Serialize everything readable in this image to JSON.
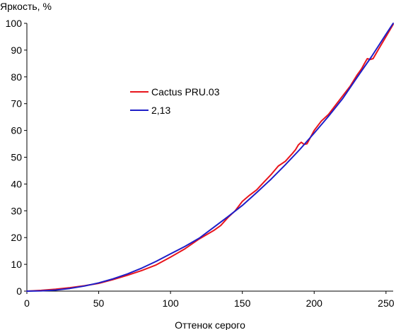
{
  "chart_data": {
    "type": "line",
    "xlabel": "Оттенок серого",
    "ylabel": "Яркость, %",
    "xlim": [
      0,
      255
    ],
    "ylim": [
      0,
      100
    ],
    "x_ticks": [
      0,
      50,
      100,
      150,
      200,
      250
    ],
    "y_ticks": [
      0,
      10,
      20,
      30,
      40,
      50,
      60,
      70,
      80,
      90,
      100
    ],
    "grid": false,
    "legend_position": "upper-left",
    "series": [
      {
        "name": "Cactus PRU.03",
        "color": "#e8141c",
        "x": [
          0,
          10,
          20,
          30,
          40,
          50,
          60,
          70,
          80,
          90,
          100,
          110,
          120,
          130,
          135,
          140,
          145,
          150,
          155,
          160,
          165,
          170,
          175,
          180,
          185,
          187,
          189,
          191,
          193,
          195,
          200,
          205,
          210,
          215,
          220,
          225,
          230,
          233,
          235,
          237,
          239,
          241,
          245,
          250,
          255
        ],
        "values": [
          0,
          0.3,
          0.7,
          1.3,
          2.0,
          2.9,
          4.3,
          5.9,
          7.7,
          9.8,
          12.7,
          15.8,
          19.5,
          22.6,
          24.5,
          27.5,
          30.0,
          33.5,
          35.8,
          37.8,
          40.7,
          43.5,
          46.7,
          48.5,
          51.5,
          52.8,
          54.6,
          55.6,
          54.8,
          55.0,
          60.0,
          63.5,
          66.0,
          69.5,
          73.0,
          76.5,
          80.8,
          83.0,
          85.0,
          86.8,
          86.5,
          86.8,
          90.5,
          95.0,
          99.6
        ]
      },
      {
        "name": "2,13",
        "color": "#1e1ec8",
        "gamma": 2.13,
        "x": [
          0,
          10,
          20,
          30,
          40,
          50,
          60,
          70,
          80,
          90,
          100,
          110,
          120,
          130,
          140,
          150,
          160,
          170,
          180,
          190,
          200,
          210,
          220,
          230,
          240,
          250,
          255
        ],
        "values": [
          0,
          0.1,
          0.4,
          1.0,
          1.9,
          3.1,
          4.6,
          6.4,
          8.6,
          11.1,
          13.9,
          16.7,
          19.8,
          23.8,
          27.8,
          32.0,
          36.8,
          41.8,
          47.2,
          52.9,
          59.0,
          65.3,
          72.0,
          79.9,
          87.6,
          95.9,
          100
        ]
      }
    ]
  }
}
